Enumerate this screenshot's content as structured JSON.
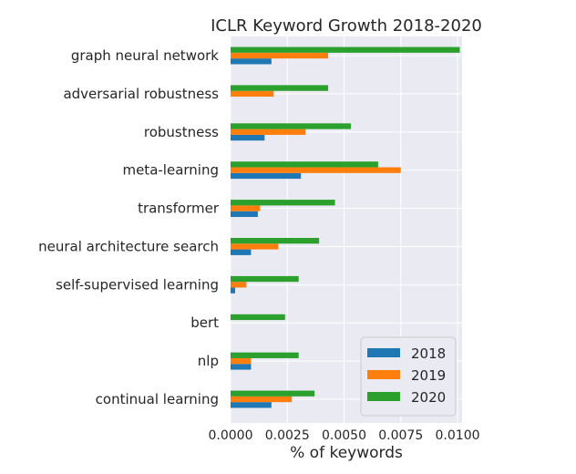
{
  "chart_data": {
    "type": "bar",
    "orientation": "horizontal",
    "title": "ICLR Keyword Growth 2018-2020",
    "xlabel": "% of keywords",
    "ylabel": "",
    "xlim": [
      0,
      0.0102
    ],
    "xticks": [
      "0.0000",
      "0.0025",
      "0.0050",
      "0.0075",
      "0.0100"
    ],
    "xtick_values": [
      0,
      0.0025,
      0.005,
      0.0075,
      0.01
    ],
    "grid": true,
    "legend_position": "lower-right",
    "categories": [
      "graph neural network",
      "adversarial robustness",
      "robustness",
      "meta-learning",
      "transformer",
      "neural architecture search",
      "self-supervised learning",
      "bert",
      "nlp",
      "continual learning"
    ],
    "series": [
      {
        "name": "2018",
        "color": "#1f77b4",
        "values": [
          0.0018,
          0.0,
          0.0015,
          0.0031,
          0.0012,
          0.0009,
          0.0002,
          0.0,
          0.0009,
          0.0018
        ]
      },
      {
        "name": "2019",
        "color": "#ff7f0e",
        "values": [
          0.0043,
          0.0019,
          0.0033,
          0.0075,
          0.0013,
          0.0021,
          0.0007,
          0.0,
          0.0009,
          0.0027
        ]
      },
      {
        "name": "2020",
        "color": "#2ca02c",
        "values": [
          0.0101,
          0.0043,
          0.0053,
          0.0065,
          0.0046,
          0.0039,
          0.003,
          0.0024,
          0.003,
          0.0037
        ]
      }
    ]
  }
}
